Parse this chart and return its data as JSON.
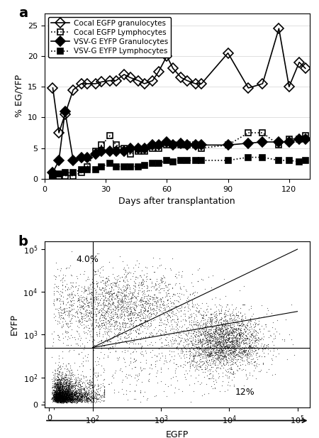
{
  "panel_a": {
    "title": "a",
    "xlabel": "Days after transplantation",
    "ylabel": "% EG/YFP",
    "xlim": [
      0,
      130
    ],
    "ylim": [
      0,
      27
    ],
    "yticks": [
      0,
      5,
      10,
      15,
      20,
      25
    ],
    "xticks": [
      0,
      30,
      60,
      90,
      120
    ],
    "series": {
      "cocal_gran": {
        "x": [
          4,
          7,
          10,
          14,
          18,
          21,
          25,
          28,
          32,
          35,
          39,
          42,
          46,
          49,
          53,
          56,
          60,
          63,
          67,
          70,
          74,
          77,
          90,
          100,
          107,
          115,
          120,
          125,
          128
        ],
        "y": [
          14.8,
          7.5,
          10.5,
          14.5,
          15.5,
          15.5,
          15.5,
          15.8,
          16.0,
          16.0,
          17.0,
          16.5,
          16.0,
          15.5,
          16.0,
          17.5,
          20.0,
          18.0,
          16.5,
          16.0,
          15.5,
          15.5,
          20.5,
          14.8,
          15.5,
          24.5,
          15.0,
          19.0,
          18.0
        ],
        "marker": "D",
        "linestyle": "-",
        "fillstyle": "none",
        "color": "black",
        "markersize": 7,
        "linewidth": 1.2,
        "label": "Cocal EGFP granulocytes"
      },
      "cocal_lymph": {
        "x": [
          4,
          7,
          10,
          14,
          18,
          21,
          25,
          28,
          32,
          35,
          39,
          42,
          46,
          49,
          53,
          56,
          60,
          63,
          67,
          70,
          74,
          77,
          90,
          100,
          107,
          115,
          120,
          125,
          128
        ],
        "y": [
          0.5,
          0.5,
          0.5,
          0.5,
          1.0,
          2.0,
          4.5,
          5.5,
          7.0,
          5.5,
          5.0,
          4.0,
          4.5,
          4.5,
          5.0,
          5.0,
          5.5,
          5.5,
          5.5,
          5.5,
          5.5,
          5.0,
          5.5,
          7.5,
          7.5,
          5.5,
          6.5,
          6.5,
          7.0
        ],
        "marker": "s",
        "linestyle": ":",
        "fillstyle": "none",
        "color": "black",
        "markersize": 6,
        "linewidth": 1.2,
        "label": "Cocal EGFP Lymphocytes"
      },
      "vsv_gran": {
        "x": [
          4,
          7,
          10,
          14,
          18,
          21,
          25,
          28,
          32,
          35,
          39,
          42,
          46,
          49,
          53,
          56,
          60,
          63,
          67,
          70,
          74,
          77,
          90,
          100,
          107,
          115,
          120,
          125,
          128
        ],
        "y": [
          1.0,
          3.0,
          11.0,
          3.0,
          3.5,
          3.5,
          4.0,
          4.5,
          4.5,
          4.5,
          4.5,
          5.0,
          5.0,
          5.0,
          5.5,
          5.5,
          6.0,
          5.5,
          5.8,
          5.5,
          5.5,
          5.5,
          5.5,
          5.8,
          6.0,
          6.0,
          6.0,
          6.5,
          6.5
        ],
        "marker": "D",
        "linestyle": "-",
        "fillstyle": "full",
        "color": "black",
        "markersize": 7,
        "linewidth": 1.2,
        "label": "VSV-G EYFP Granulocytes"
      },
      "vsv_lymph": {
        "x": [
          4,
          7,
          10,
          14,
          18,
          21,
          25,
          28,
          32,
          35,
          39,
          42,
          46,
          49,
          53,
          56,
          60,
          63,
          67,
          70,
          74,
          77,
          90,
          100,
          107,
          115,
          120,
          125,
          128
        ],
        "y": [
          0.5,
          0.8,
          1.0,
          1.0,
          1.5,
          1.5,
          1.5,
          2.0,
          2.5,
          2.0,
          2.0,
          2.0,
          2.0,
          2.2,
          2.5,
          2.5,
          3.0,
          2.8,
          3.0,
          3.0,
          3.0,
          3.0,
          3.0,
          3.5,
          3.5,
          3.0,
          3.0,
          2.8,
          3.0
        ],
        "marker": "s",
        "linestyle": ":",
        "fillstyle": "full",
        "color": "black",
        "markersize": 6,
        "linewidth": 1.2,
        "label": "VSV-G EYFP Lymphocytes"
      }
    }
  },
  "panel_b": {
    "title": "b",
    "xlabel": "EGFP",
    "ylabel": "EYFP",
    "label_4pct": "4.0%",
    "label_12pct": "12%",
    "bg_color": "white"
  }
}
